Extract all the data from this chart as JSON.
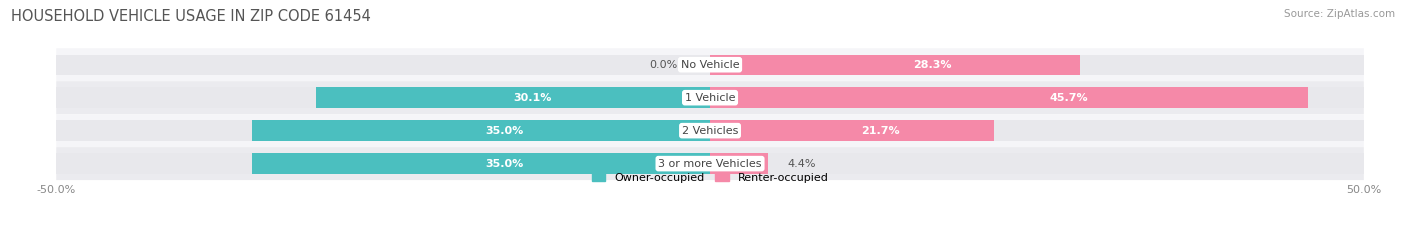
{
  "title": "HOUSEHOLD VEHICLE USAGE IN ZIP CODE 61454",
  "source": "Source: ZipAtlas.com",
  "categories": [
    "No Vehicle",
    "1 Vehicle",
    "2 Vehicles",
    "3 or more Vehicles"
  ],
  "owner_values": [
    0.0,
    30.1,
    35.0,
    35.0
  ],
  "renter_values": [
    28.3,
    45.7,
    21.7,
    4.4
  ],
  "owner_color": "#4BBFBF",
  "renter_color": "#F589A8",
  "bar_bg_color": "#E8E8EC",
  "row_bg_colors": [
    "#F5F5F8",
    "#EBEBEF"
  ],
  "axis_limit": 50.0,
  "legend_owner": "Owner-occupied",
  "legend_renter": "Renter-occupied",
  "title_fontsize": 10.5,
  "label_fontsize": 8.0,
  "tick_fontsize": 8.0,
  "source_fontsize": 7.5
}
